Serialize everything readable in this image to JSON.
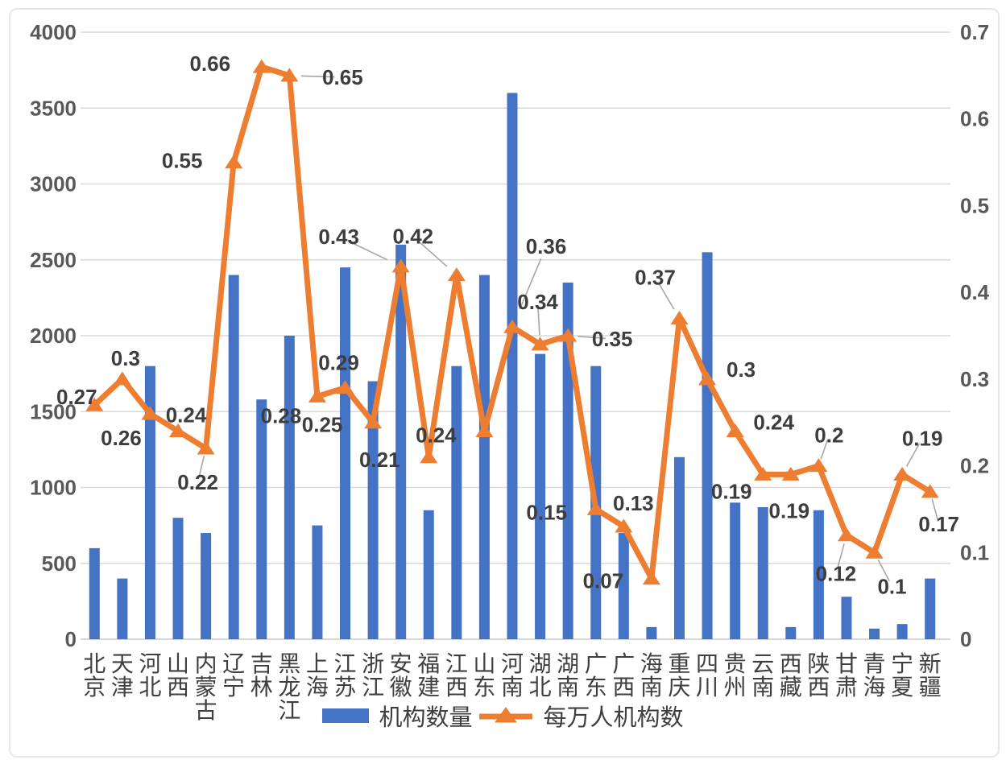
{
  "chart_data": {
    "type": "combo",
    "title": "",
    "xlabel": "",
    "ylabel_left": "",
    "ylabel_right": "",
    "categories": [
      "北京",
      "天津",
      "河北",
      "山西",
      "内蒙古",
      "辽宁",
      "吉林",
      "黑龙江",
      "上海",
      "江苏",
      "浙江",
      "安徽",
      "福建",
      "江西",
      "山东",
      "河南",
      "湖北",
      "湖南",
      "广东",
      "广西",
      "海南",
      "重庆",
      "四川",
      "贵州",
      "云南",
      "西藏",
      "陕西",
      "甘肃",
      "青海",
      "宁夏",
      "新疆"
    ],
    "series": [
      {
        "name": "机构数量",
        "type": "bar",
        "axis": "left",
        "color": "#4472C4",
        "values": [
          600,
          400,
          1800,
          800,
          700,
          2400,
          1580,
          2000,
          750,
          2450,
          1700,
          2600,
          850,
          1800,
          2400,
          3600,
          1880,
          2350,
          1800,
          700,
          80,
          1200,
          2550,
          900,
          870,
          80,
          850,
          280,
          70,
          100,
          400
        ]
      },
      {
        "name": "每万人机构数",
        "type": "line",
        "axis": "right",
        "color": "#ED7D31",
        "values": [
          0.27,
          0.3,
          0.26,
          0.24,
          0.22,
          0.55,
          0.66,
          0.65,
          0.28,
          0.29,
          0.25,
          0.43,
          0.21,
          0.42,
          0.24,
          0.36,
          0.34,
          0.35,
          0.15,
          0.13,
          0.07,
          0.37,
          0.3,
          0.24,
          0.19,
          0.19,
          0.2,
          0.12,
          0.1,
          0.19,
          0.17
        ],
        "data_labels": [
          "0.27",
          "0.3",
          "0.26",
          "0.24",
          "0.22",
          "0.55",
          "0.66",
          "0.65",
          "0.28",
          "0.29",
          "0.25",
          "0.43",
          "0.21",
          "0.42",
          "0.24",
          "0.36",
          "0.34",
          "0.35",
          "0.15",
          "0.13",
          "0.07",
          "0.37",
          "0.3",
          "0.24",
          "0.19",
          "0.19",
          "0.2",
          "0.12",
          "0.1",
          "0.19",
          "0.17"
        ]
      }
    ],
    "left_axis": {
      "min": 0,
      "max": 4000,
      "tick_labels": [
        "0",
        "500",
        "1000",
        "1500",
        "2000",
        "2500",
        "3000",
        "3500",
        "4000"
      ]
    },
    "right_axis": {
      "min": 0,
      "max": 0.7,
      "tick_labels": [
        "0",
        "0.1",
        "0.2",
        "0.3",
        "0.4",
        "0.5",
        "0.6",
        "0.7"
      ]
    },
    "grid": "horizontal",
    "legend_position": "bottom-center",
    "label_offsets": [
      [
        -22,
        -10,
        0
      ],
      [
        4,
        -26,
        0
      ],
      [
        -36,
        30,
        0
      ],
      [
        10,
        -20,
        0
      ],
      [
        -10,
        42,
        1
      ],
      [
        -64,
        -2,
        0
      ],
      [
        -64,
        -4,
        0
      ],
      [
        66,
        2,
        1
      ],
      [
        -45,
        24,
        0
      ],
      [
        -8,
        -31,
        0
      ],
      [
        -63,
        3,
        0
      ],
      [
        -77,
        -37,
        1
      ],
      [
        -61,
        3,
        0
      ],
      [
        -54,
        -48,
        1
      ],
      [
        -60,
        5,
        0
      ],
      [
        42,
        -100,
        1
      ],
      [
        -3,
        -53,
        1
      ],
      [
        55,
        4,
        1
      ],
      [
        -61,
        4,
        0
      ],
      [
        12,
        -29,
        0
      ],
      [
        -60,
        3,
        0
      ],
      [
        -30,
        -51,
        1
      ],
      [
        42,
        -12,
        0
      ],
      [
        48,
        -11,
        0
      ],
      [
        -39,
        21,
        0
      ],
      [
        -2,
        45,
        0
      ],
      [
        13,
        -38,
        1
      ],
      [
        -13,
        48,
        1
      ],
      [
        22,
        42,
        1
      ],
      [
        25,
        -45,
        1
      ],
      [
        11,
        40,
        1
      ]
    ]
  },
  "legend": {
    "bar_label": "机构数量",
    "line_label": "每万人机构数"
  },
  "colors": {
    "bar": "#4472C4",
    "line": "#ED7D31",
    "grid": "#D9D9D9",
    "axis_line": "#C9C9C9",
    "axis_text": "#595959",
    "data_label_text": "#3D3D3D",
    "category_text": "#3F3F3F",
    "leader": "#A6A6A6",
    "frame_border": "#E7E7E7"
  }
}
